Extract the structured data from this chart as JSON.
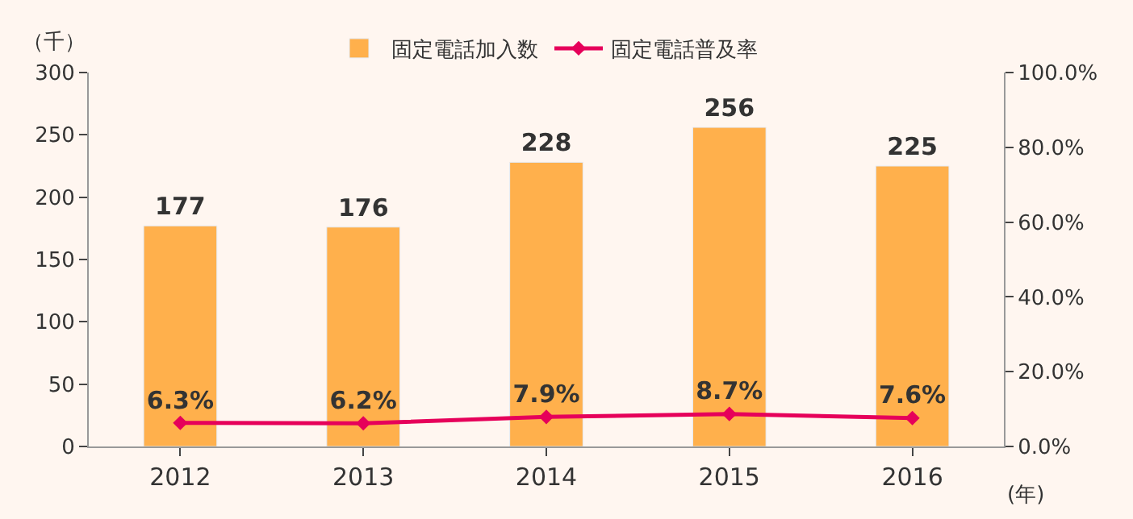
{
  "chart_data": {
    "type": "bar",
    "categories": [
      "2012",
      "2013",
      "2014",
      "2015",
      "2016"
    ],
    "ylabel": "（千）",
    "xlabel": "(年)",
    "series": [
      {
        "name": "固定電話加入数",
        "color": "#ffb04c",
        "values": [
          177,
          176,
          228,
          256,
          225
        ],
        "value_labels": [
          "177",
          "176",
          "228",
          "256",
          "225"
        ]
      },
      {
        "name": "固定電話普及率",
        "type": "line",
        "axis": "y2",
        "color": "#e6005a",
        "values": [
          6.3,
          6.2,
          7.9,
          8.7,
          7.6
        ],
        "value_labels": [
          "6.3%",
          "6.2%",
          "7.9%",
          "8.7%",
          "7.6%"
        ]
      }
    ],
    "ylim": [
      0,
      300
    ],
    "yticks": [
      0,
      50,
      100,
      150,
      200,
      250,
      300
    ],
    "y2lim": [
      0,
      100
    ],
    "y2ticks": [
      {
        "value": 0,
        "label": "0.0%"
      },
      {
        "value": 20,
        "label": "20.0%"
      },
      {
        "value": 40,
        "label": "40.0%"
      },
      {
        "value": 60,
        "label": "60.0%"
      },
      {
        "value": 80,
        "label": "80.0%"
      },
      {
        "value": 100,
        "label": "100.0%"
      }
    ],
    "grid": false,
    "legend": "top",
    "marker": "diamond",
    "line_style": "solid"
  }
}
